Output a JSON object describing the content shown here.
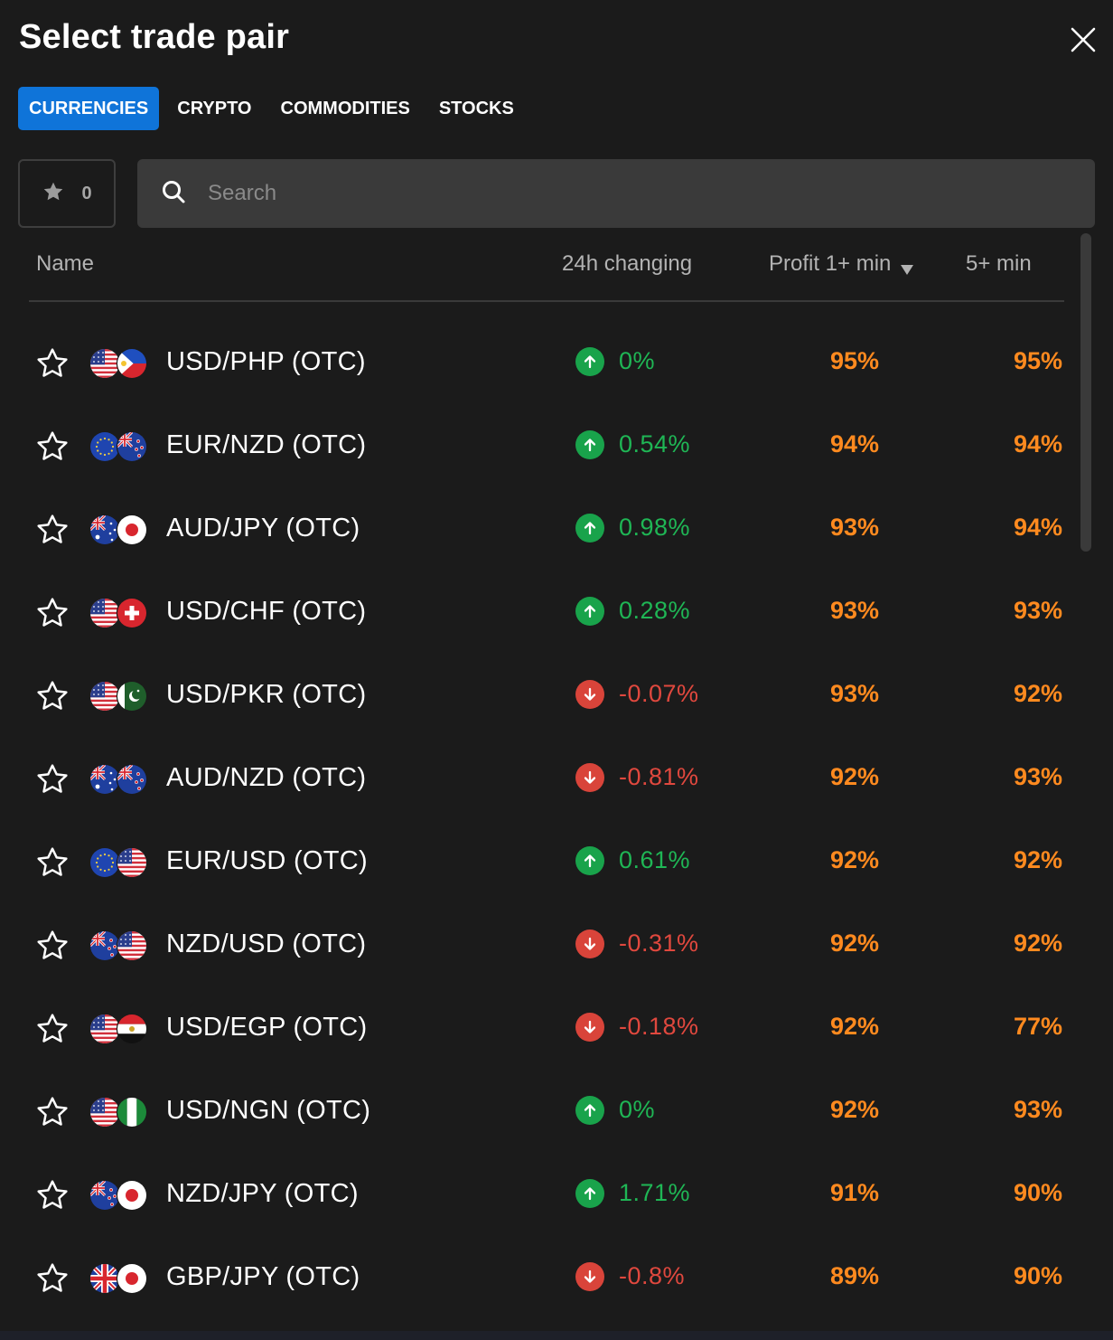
{
  "title": "Select trade pair",
  "tabs": [
    {
      "label": "CURRENCIES",
      "active": true
    },
    {
      "label": "CRYPTO",
      "active": false
    },
    {
      "label": "COMMODITIES",
      "active": false
    },
    {
      "label": "STOCKS",
      "active": false
    }
  ],
  "favorites": {
    "count": "0",
    "icon": "star-filled-icon"
  },
  "search": {
    "placeholder": "Search",
    "value": "",
    "icon": "search-icon"
  },
  "columns": {
    "name": "Name",
    "change": "24h changing",
    "profit1": "Profit 1+ min",
    "profit5": "5+ min",
    "sort_icon": "sort-down-icon"
  },
  "colors": {
    "accent": "#0f74d9",
    "up": "#1fb655",
    "down": "#e0483e",
    "profit": "#ff8a1f",
    "background": "#1b1b1b"
  },
  "rows": [
    {
      "name": "USD/PHP (OTC)",
      "flags": [
        "us",
        "ph"
      ],
      "direction": "up",
      "change": "0%",
      "profit1": "95%",
      "profit5": "95%"
    },
    {
      "name": "EUR/NZD (OTC)",
      "flags": [
        "eu",
        "nz"
      ],
      "direction": "up",
      "change": "0.54%",
      "profit1": "94%",
      "profit5": "94%"
    },
    {
      "name": "AUD/JPY (OTC)",
      "flags": [
        "au",
        "jp"
      ],
      "direction": "up",
      "change": "0.98%",
      "profit1": "93%",
      "profit5": "94%"
    },
    {
      "name": "USD/CHF (OTC)",
      "flags": [
        "us",
        "ch"
      ],
      "direction": "up",
      "change": "0.28%",
      "profit1": "93%",
      "profit5": "93%"
    },
    {
      "name": "USD/PKR (OTC)",
      "flags": [
        "us",
        "pk"
      ],
      "direction": "down",
      "change": "-0.07%",
      "profit1": "93%",
      "profit5": "92%"
    },
    {
      "name": "AUD/NZD (OTC)",
      "flags": [
        "au",
        "nz"
      ],
      "direction": "down",
      "change": "-0.81%",
      "profit1": "92%",
      "profit5": "93%"
    },
    {
      "name": "EUR/USD (OTC)",
      "flags": [
        "eu",
        "us"
      ],
      "direction": "up",
      "change": "0.61%",
      "profit1": "92%",
      "profit5": "92%"
    },
    {
      "name": "NZD/USD (OTC)",
      "flags": [
        "nz",
        "us"
      ],
      "direction": "down",
      "change": "-0.31%",
      "profit1": "92%",
      "profit5": "92%"
    },
    {
      "name": "USD/EGP (OTC)",
      "flags": [
        "us",
        "eg"
      ],
      "direction": "down",
      "change": "-0.18%",
      "profit1": "92%",
      "profit5": "77%"
    },
    {
      "name": "USD/NGN (OTC)",
      "flags": [
        "us",
        "ng"
      ],
      "direction": "up",
      "change": "0%",
      "profit1": "92%",
      "profit5": "93%"
    },
    {
      "name": "NZD/JPY (OTC)",
      "flags": [
        "nz",
        "jp"
      ],
      "direction": "up",
      "change": "1.71%",
      "profit1": "91%",
      "profit5": "90%"
    },
    {
      "name": "GBP/JPY (OTC)",
      "flags": [
        "gb",
        "jp"
      ],
      "direction": "down",
      "change": "-0.8%",
      "profit1": "89%",
      "profit5": "90%"
    }
  ]
}
